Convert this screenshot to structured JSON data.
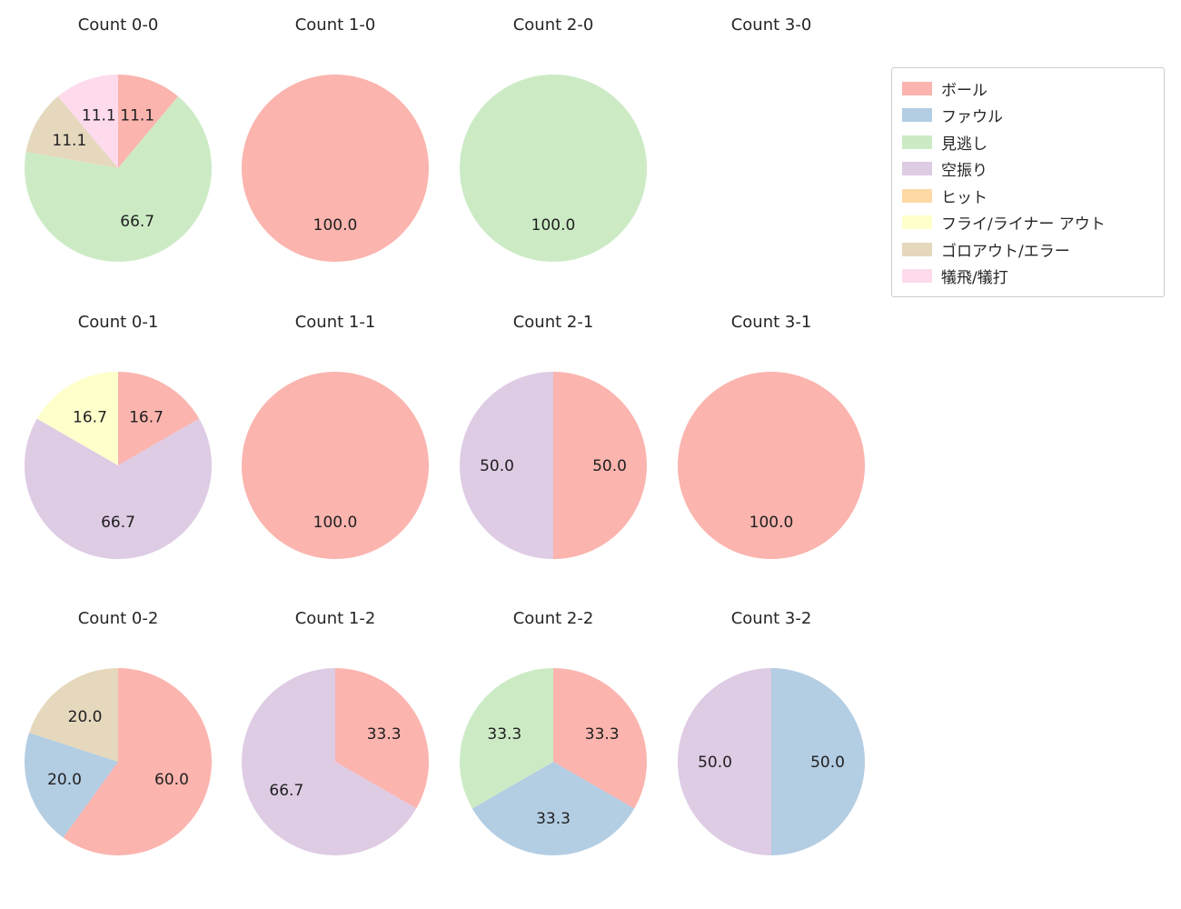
{
  "figure": {
    "background": "#ffffff",
    "text_color": "#262626"
  },
  "legend": {
    "position": "top-right",
    "items": [
      {
        "label": "ボール",
        "color": "#fbb4ae"
      },
      {
        "label": "ファウル",
        "color": "#b3cde3"
      },
      {
        "label": "見逃し",
        "color": "#ccebc5"
      },
      {
        "label": "空振り",
        "color": "#decbe4"
      },
      {
        "label": "ヒット",
        "color": "#fed9a6"
      },
      {
        "label": "フライ/ライナー アウト",
        "color": "#ffffcc"
      },
      {
        "label": "ゴロアウト/エラー",
        "color": "#e5d8bd"
      },
      {
        "label": "犠飛/犠打",
        "color": "#fddaec"
      }
    ]
  },
  "chart_data": [
    {
      "type": "pie",
      "title": "Count 0-0",
      "row": 0,
      "col": 0,
      "start_angle_deg": 90,
      "direction": "clockwise",
      "slices": [
        {
          "label": "ボール",
          "pct": 11.1,
          "pct_label": "11.1"
        },
        {
          "label": "見逃し",
          "pct": 66.7,
          "pct_label": "66.7"
        },
        {
          "label": "ゴロアウト/エラー",
          "pct": 11.1,
          "pct_label": "11.1"
        },
        {
          "label": "犠飛/犠打",
          "pct": 11.1,
          "pct_label": "11.1"
        }
      ]
    },
    {
      "type": "pie",
      "title": "Count 1-0",
      "row": 0,
      "col": 1,
      "start_angle_deg": 90,
      "direction": "clockwise",
      "slices": [
        {
          "label": "ボール",
          "pct": 100.0,
          "pct_label": "100.0"
        }
      ]
    },
    {
      "type": "pie",
      "title": "Count 2-0",
      "row": 0,
      "col": 2,
      "start_angle_deg": 90,
      "direction": "clockwise",
      "slices": [
        {
          "label": "見逃し",
          "pct": 100.0,
          "pct_label": "100.0"
        }
      ]
    },
    {
      "type": "pie",
      "title": "Count 3-0",
      "row": 0,
      "col": 3,
      "start_angle_deg": 90,
      "direction": "clockwise",
      "slices": []
    },
    {
      "type": "pie",
      "title": "Count 0-1",
      "row": 1,
      "col": 0,
      "start_angle_deg": 90,
      "direction": "clockwise",
      "slices": [
        {
          "label": "ボール",
          "pct": 16.7,
          "pct_label": "16.7"
        },
        {
          "label": "空振り",
          "pct": 66.7,
          "pct_label": "66.7"
        },
        {
          "label": "フライ/ライナー アウト",
          "pct": 16.7,
          "pct_label": "16.7"
        }
      ]
    },
    {
      "type": "pie",
      "title": "Count 1-1",
      "row": 1,
      "col": 1,
      "start_angle_deg": 90,
      "direction": "clockwise",
      "slices": [
        {
          "label": "ボール",
          "pct": 100.0,
          "pct_label": "100.0"
        }
      ]
    },
    {
      "type": "pie",
      "title": "Count 2-1",
      "row": 1,
      "col": 2,
      "start_angle_deg": 90,
      "direction": "clockwise",
      "slices": [
        {
          "label": "ボール",
          "pct": 50.0,
          "pct_label": "50.0"
        },
        {
          "label": "空振り",
          "pct": 50.0,
          "pct_label": "50.0"
        }
      ]
    },
    {
      "type": "pie",
      "title": "Count 3-1",
      "row": 1,
      "col": 3,
      "start_angle_deg": 90,
      "direction": "clockwise",
      "slices": [
        {
          "label": "ボール",
          "pct": 100.0,
          "pct_label": "100.0"
        }
      ]
    },
    {
      "type": "pie",
      "title": "Count 0-2",
      "row": 2,
      "col": 0,
      "start_angle_deg": 90,
      "direction": "clockwise",
      "slices": [
        {
          "label": "ボール",
          "pct": 60.0,
          "pct_label": "60.0"
        },
        {
          "label": "ファウル",
          "pct": 20.0,
          "pct_label": "20.0"
        },
        {
          "label": "ゴロアウト/エラー",
          "pct": 20.0,
          "pct_label": "20.0"
        }
      ]
    },
    {
      "type": "pie",
      "title": "Count 1-2",
      "row": 2,
      "col": 1,
      "start_angle_deg": 90,
      "direction": "clockwise",
      "slices": [
        {
          "label": "ボール",
          "pct": 33.3,
          "pct_label": "33.3"
        },
        {
          "label": "空振り",
          "pct": 66.7,
          "pct_label": "66.7"
        }
      ]
    },
    {
      "type": "pie",
      "title": "Count 2-2",
      "row": 2,
      "col": 2,
      "start_angle_deg": 90,
      "direction": "clockwise",
      "slices": [
        {
          "label": "ボール",
          "pct": 33.3,
          "pct_label": "33.3"
        },
        {
          "label": "ファウル",
          "pct": 33.3,
          "pct_label": "33.3"
        },
        {
          "label": "見逃し",
          "pct": 33.3,
          "pct_label": "33.3"
        }
      ]
    },
    {
      "type": "pie",
      "title": "Count 3-2",
      "row": 2,
      "col": 3,
      "start_angle_deg": 90,
      "direction": "clockwise",
      "slices": [
        {
          "label": "ファウル",
          "pct": 50.0,
          "pct_label": "50.0"
        },
        {
          "label": "空振り",
          "pct": 50.0,
          "pct_label": "50.0"
        }
      ]
    }
  ]
}
